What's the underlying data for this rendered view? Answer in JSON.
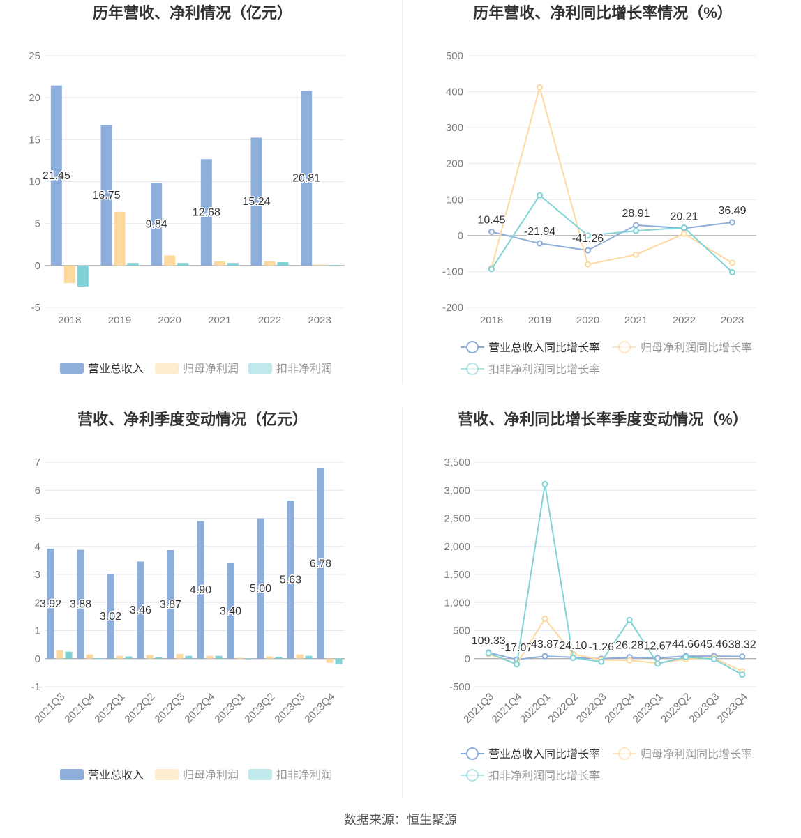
{
  "colors": {
    "revenue": "#8eaedb",
    "parent_profit": "#fdd9a0",
    "deducted_profit": "#7fd3d6",
    "grid": "#e6e9f2",
    "axis": "#999999"
  },
  "source_text": "数据来源：恒生聚源",
  "chart_data": [
    {
      "type": "bar",
      "title": "历年营收、净利情况（亿元）",
      "categories": [
        "2018",
        "2019",
        "2020",
        "2021",
        "2022",
        "2023"
      ],
      "ylim": [
        -5,
        25
      ],
      "yticks": [
        -5,
        0,
        5,
        10,
        15,
        20,
        25
      ],
      "legend_position": "bottom",
      "series": [
        {
          "name": "营业总收入",
          "values": [
            21.45,
            16.75,
            9.84,
            12.68,
            15.24,
            20.81
          ],
          "labels": [
            "21.45",
            "16.75",
            "9.84",
            "12.68",
            "15.24",
            "20.81"
          ]
        },
        {
          "name": "归母净利润",
          "values": [
            -2.1,
            6.4,
            1.2,
            0.5,
            0.5,
            0.1
          ]
        },
        {
          "name": "扣非净利润",
          "values": [
            -2.5,
            0.3,
            0.3,
            0.3,
            0.4,
            0.05
          ]
        }
      ]
    },
    {
      "type": "line",
      "title": "历年营收、净利同比增长率情况（%）",
      "categories": [
        "2018",
        "2019",
        "2020",
        "2021",
        "2022",
        "2023"
      ],
      "ylim": [
        -200,
        500
      ],
      "yticks": [
        -200,
        -100,
        0,
        100,
        200,
        300,
        400,
        500
      ],
      "legend_position": "bottom",
      "series": [
        {
          "name": "营业总收入同比增长率",
          "values": [
            10.45,
            -21.94,
            -41.26,
            28.91,
            20.21,
            36.49
          ],
          "labels": [
            "10.45",
            "-21.94",
            "-41.26",
            "28.91",
            "20.21",
            "36.49"
          ]
        },
        {
          "name": "归母净利润同比增长率",
          "values": [
            -90,
            412,
            -80,
            -53,
            5,
            -76
          ]
        },
        {
          "name": "扣非净利润同比增长率",
          "values": [
            -93,
            112,
            0,
            13,
            22,
            -102
          ]
        }
      ]
    },
    {
      "type": "bar",
      "title": "营收、净利季度变动情况（亿元）",
      "categories": [
        "2021Q3",
        "2021Q4",
        "2022Q1",
        "2022Q2",
        "2022Q3",
        "2022Q4",
        "2023Q1",
        "2023Q2",
        "2023Q3",
        "2023Q4"
      ],
      "ylim": [
        -1,
        7
      ],
      "yticks": [
        -1,
        0,
        1,
        2,
        3,
        4,
        5,
        6,
        7
      ],
      "legend_position": "bottom",
      "series": [
        {
          "name": "营业总收入",
          "values": [
            3.92,
            3.88,
            3.02,
            3.46,
            3.87,
            4.9,
            3.4,
            5.0,
            5.63,
            6.78
          ],
          "labels": [
            "3.92",
            "3.88",
            "3.02",
            "3.46",
            "3.87",
            "4.90",
            "3.40",
            "5.00",
            "5.63",
            "6.78"
          ]
        },
        {
          "name": "归母净利润",
          "values": [
            0.3,
            0.15,
            0.1,
            0.13,
            0.17,
            0.1,
            0.03,
            0.08,
            0.15,
            -0.15
          ]
        },
        {
          "name": "扣非净利润",
          "values": [
            0.25,
            0.02,
            0.08,
            0.05,
            0.1,
            0.1,
            -0.02,
            0.06,
            0.1,
            -0.2
          ]
        }
      ]
    },
    {
      "type": "line",
      "title": "营收、净利同比增长率季度变动情况（%）",
      "categories": [
        "2021Q3",
        "2021Q4",
        "2022Q1",
        "2022Q2",
        "2022Q3",
        "2022Q4",
        "2023Q1",
        "2023Q2",
        "2023Q3",
        "2023Q4"
      ],
      "ylim": [
        -500,
        3500
      ],
      "yticks": [
        -500,
        0,
        500,
        1000,
        1500,
        2000,
        2500,
        3000,
        3500
      ],
      "ytick_labels": [
        "-500",
        "0",
        "500",
        "1,000",
        "1,500",
        "2,000",
        "2,500",
        "3,000",
        "3,500"
      ],
      "legend_position": "bottom",
      "series": [
        {
          "name": "营业总收入同比增长率",
          "values": [
            109.33,
            -17.07,
            43.87,
            24.1,
            -1.26,
            26.28,
            12.67,
            44.66,
            45.46,
            38.32
          ],
          "labels": [
            "109.33",
            "-17.07",
            "43.87",
            "24.10",
            "-1.26",
            "26.28",
            "12.67",
            "44.66",
            "45.46",
            "38.32"
          ]
        },
        {
          "name": "归母净利润同比增长率",
          "values": [
            80,
            -95,
            710,
            80,
            -20,
            -30,
            -80,
            -10,
            10,
            -225
          ]
        },
        {
          "name": "扣非净利润同比增长率",
          "values": [
            100,
            -100,
            3110,
            15,
            -55,
            690,
            -90,
            30,
            -10,
            -285
          ]
        }
      ]
    }
  ]
}
